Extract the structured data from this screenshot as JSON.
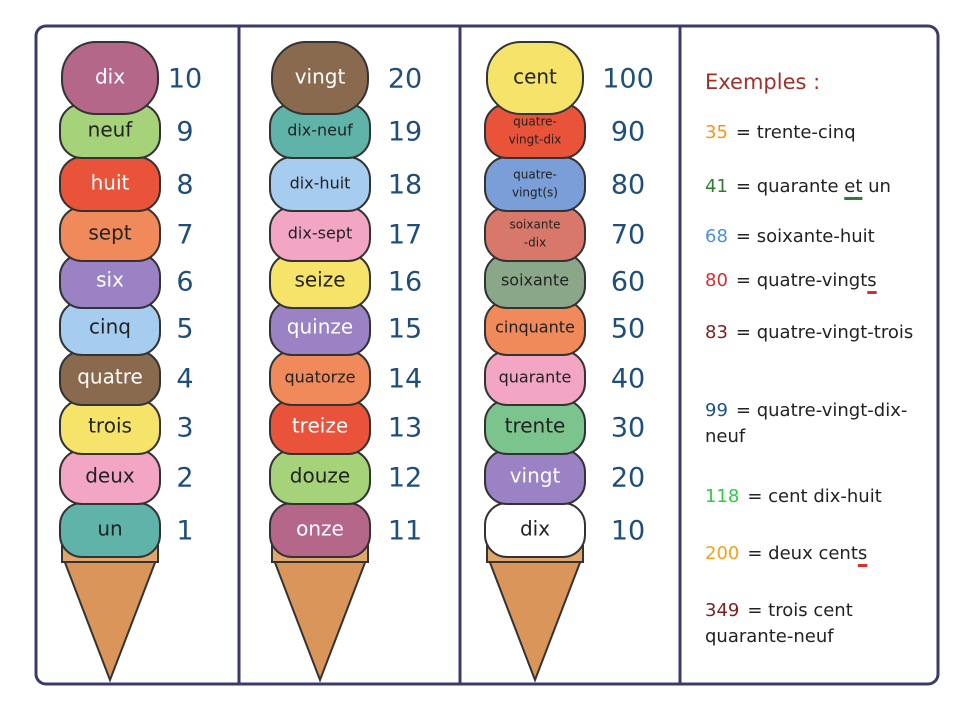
{
  "cones": [
    {
      "scoops": [
        {
          "label": "dix",
          "number": "10",
          "color": "#b5678a",
          "ink": "#ffffff"
        },
        {
          "label": "neuf",
          "number": "9",
          "color": "#a6d27a"
        },
        {
          "label": "huit",
          "number": "8",
          "color": "#e8533a",
          "ink": "#ffffff"
        },
        {
          "label": "sept",
          "number": "7",
          "color": "#f08a5a"
        },
        {
          "label": "six",
          "number": "6",
          "color": "#9b82c4",
          "ink": "#ffffff"
        },
        {
          "label": "cinq",
          "number": "5",
          "color": "#a6cdef"
        },
        {
          "label": "quatre",
          "number": "4",
          "color": "#8a6a4e",
          "ink": "#ffffff"
        },
        {
          "label": "trois",
          "number": "3",
          "color": "#f6e36a"
        },
        {
          "label": "deux",
          "number": "2",
          "color": "#f2a6c4"
        },
        {
          "label": "un",
          "number": "1",
          "color": "#5fb3a8"
        }
      ]
    },
    {
      "scoops": [
        {
          "label": "vingt",
          "number": "20",
          "color": "#8a6a4e",
          "ink": "#ffffff"
        },
        {
          "label": "dix-neuf",
          "number": "19",
          "color": "#5fb3a8"
        },
        {
          "label": "dix-huit",
          "number": "18",
          "color": "#a6cdef"
        },
        {
          "label": "dix-sept",
          "number": "17",
          "color": "#f2a6c4"
        },
        {
          "label": "seize",
          "number": "16",
          "color": "#f6e36a"
        },
        {
          "label": "quinze",
          "number": "15",
          "color": "#9b82c4",
          "ink": "#ffffff"
        },
        {
          "label": "quatorze",
          "number": "14",
          "color": "#f08a5a"
        },
        {
          "label": "treize",
          "number": "13",
          "color": "#e8533a",
          "ink": "#ffffff"
        },
        {
          "label": "douze",
          "number": "12",
          "color": "#a6d27a"
        },
        {
          "label": "onze",
          "number": "11",
          "color": "#b5678a",
          "ink": "#ffffff"
        }
      ]
    },
    {
      "scoops": [
        {
          "label": "cent",
          "number": "100",
          "color": "#f6e36a"
        },
        {
          "label": [
            "quatre-",
            "vingt-dix"
          ],
          "number": "90",
          "color": "#e8533a"
        },
        {
          "label": [
            "quatre-",
            "vingt(s)"
          ],
          "number": "80",
          "color": "#7a9ed8"
        },
        {
          "label": [
            "soixante",
            "-dix"
          ],
          "number": "70",
          "color": "#d8786a"
        },
        {
          "label": "soixante",
          "number": "60",
          "color": "#8aa889"
        },
        {
          "label": "cinquante",
          "number": "50",
          "color": "#f08a5a"
        },
        {
          "label": "quarante",
          "number": "40",
          "color": "#f2a6c4"
        },
        {
          "label": "trente",
          "number": "30",
          "color": "#7cc48e"
        },
        {
          "label": "vingt",
          "number": "20",
          "color": "#9b82c4",
          "ink": "#ffffff"
        },
        {
          "label": "dix",
          "number": "10",
          "color": "#ffffff"
        }
      ]
    }
  ],
  "examples": {
    "title": "Exemples :",
    "items": [
      {
        "number": "35",
        "color": "#f7941d",
        "parts": [
          {
            "t": "= trente-cinq"
          }
        ]
      },
      {
        "number": "41",
        "color": "#2e7d32",
        "parts": [
          {
            "t": "= quarante "
          },
          {
            "t": "et",
            "u": "#2e7d32"
          },
          {
            "t": " un"
          }
        ]
      },
      {
        "number": "68",
        "color": "#4a90d9",
        "parts": [
          {
            "t": "= soixante-huit"
          }
        ]
      },
      {
        "number": "80",
        "color": "#d32f2f",
        "parts": [
          {
            "t": "= quatre-vingt"
          },
          {
            "t": "s",
            "u": "#d32f2f"
          }
        ]
      },
      {
        "number": "83",
        "color": "#7b1f1f",
        "parts": [
          {
            "t": "= quatre-vingt-trois"
          }
        ]
      },
      {
        "number": "99",
        "color": "#1f4e8c",
        "parts": [
          {
            "t": "= quatre-vingt-dix-neuf"
          }
        ]
      },
      {
        "number": "118",
        "color": "#2ecc40",
        "parts": [
          {
            "t": "= cent dix-huit"
          }
        ]
      },
      {
        "number": "200",
        "color": "#f7a01d",
        "parts": [
          {
            "t": "= deux cent"
          },
          {
            "t": "s",
            "u": "#d32f2f"
          }
        ]
      },
      {
        "number": "349",
        "color": "#7b1f1f",
        "parts": [
          {
            "t": "= trois cent quarante-neuf"
          }
        ]
      }
    ]
  }
}
